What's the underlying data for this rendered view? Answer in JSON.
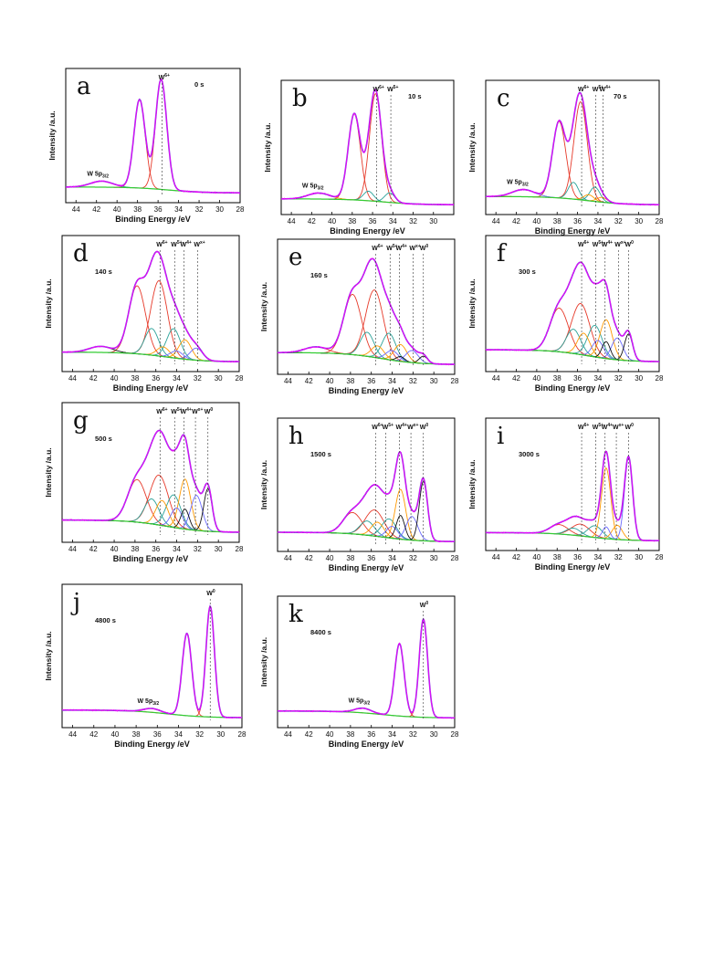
{
  "colors": {
    "envelope": "#8a2be2",
    "raw": "#ff00ff",
    "background": "#33cc33",
    "comp_w6": "#e63a2a",
    "comp_w5": "#2aa198",
    "comp_w4": "#ff9900",
    "comp_w0": "#111111",
    "comp_mid": "#6a6aff"
  },
  "chart_data": [
    {
      "id": "a",
      "type": "line",
      "panel_label": "a",
      "time_label": "0 s",
      "xlabel": "Binding  Energy /eV",
      "ylabel": "Intensity /a.u.",
      "xlim": [
        45,
        28
      ],
      "xticks": [
        44,
        42,
        40,
        38,
        36,
        34,
        32,
        30,
        28
      ],
      "annotations": [
        {
          "text": "W",
          "sup": "6+",
          "x": 35.6
        },
        {
          "text": "W 5p",
          "sub": "3/2",
          "x": 41.5
        }
      ],
      "components": [
        {
          "center": 37.8,
          "width": 0.55,
          "amp": 0.74
        },
        {
          "center": 35.7,
          "width": 0.55,
          "amp": 0.92
        },
        {
          "center": 41.5,
          "width": 1.1,
          "amp": 0.05
        }
      ],
      "bg": {
        "left": 0.05,
        "right": 0.0
      }
    },
    {
      "id": "b",
      "type": "line",
      "panel_label": "b",
      "time_label": "10 s",
      "xlabel": "Binding  Energy /eV",
      "ylabel": "Intensity /a.u.",
      "xlim": [
        45,
        28
      ],
      "xticks": [
        44,
        42,
        40,
        38,
        36,
        34,
        32,
        30
      ],
      "annotations": [
        {
          "text": "W",
          "sup": "6+",
          "x": 35.6
        },
        {
          "text": "W",
          "sup": "5+",
          "x": 34.2
        },
        {
          "text": "W 5p",
          "sub": "3/2",
          "x": 41.5
        }
      ],
      "components": [
        {
          "center": 37.8,
          "width": 0.6,
          "amp": 0.72
        },
        {
          "center": 35.7,
          "width": 0.6,
          "amp": 0.9
        },
        {
          "center": 36.4,
          "width": 0.5,
          "amp": 0.08
        },
        {
          "center": 34.3,
          "width": 0.5,
          "amp": 0.08
        },
        {
          "center": 41.3,
          "width": 1.1,
          "amp": 0.05
        }
      ],
      "bg": {
        "left": 0.05,
        "right": 0.0
      }
    },
    {
      "id": "c",
      "type": "line",
      "panel_label": "c",
      "time_label": "70 s",
      "xlabel": "Binding  Energy /eV",
      "ylabel": "Intensity /a.u.",
      "xlim": [
        45,
        28
      ],
      "xticks": [
        44,
        42,
        40,
        38,
        36,
        34,
        32,
        30,
        28
      ],
      "annotations": [
        {
          "text": "W",
          "sup": "6+",
          "x": 35.6
        },
        {
          "text": "W",
          "sup": "5+",
          "x": 34.2
        },
        {
          "text": "W",
          "sup": "4+",
          "x": 33.5
        },
        {
          "text": "W 5p",
          "sub": "3/2",
          "x": 41.5
        }
      ],
      "components": [
        {
          "center": 37.8,
          "width": 0.65,
          "amp": 0.64
        },
        {
          "center": 35.7,
          "width": 0.65,
          "amp": 0.82
        },
        {
          "center": 36.4,
          "width": 0.5,
          "amp": 0.14
        },
        {
          "center": 34.3,
          "width": 0.5,
          "amp": 0.12
        },
        {
          "center": 34.9,
          "width": 0.5,
          "amp": 0.05
        },
        {
          "center": 33.6,
          "width": 0.5,
          "amp": 0.04
        },
        {
          "center": 41.3,
          "width": 1.1,
          "amp": 0.06
        }
      ],
      "bg": {
        "left": 0.07,
        "right": 0.0
      }
    },
    {
      "id": "d",
      "type": "line",
      "panel_label": "d",
      "time_label": "140 s",
      "xlabel": "Binding  Energy /eV",
      "ylabel": "Intensity /a.u.",
      "xlim": [
        45,
        28
      ],
      "xticks": [
        44,
        42,
        40,
        38,
        36,
        34,
        32,
        30,
        28
      ],
      "annotations": [
        {
          "text": "W",
          "sup": "6+",
          "x": 35.6
        },
        {
          "text": "W",
          "sup": "5+",
          "x": 34.2
        },
        {
          "text": "W",
          "sup": "4+",
          "x": 33.3
        },
        {
          "text": "W",
          "sup": "x+",
          "x": 32.0
        }
      ],
      "components": [
        {
          "center": 37.8,
          "width": 0.8,
          "amp": 0.56
        },
        {
          "center": 35.7,
          "width": 0.8,
          "amp": 0.62
        },
        {
          "center": 36.4,
          "width": 0.65,
          "amp": 0.22
        },
        {
          "center": 34.3,
          "width": 0.65,
          "amp": 0.24
        },
        {
          "center": 35.3,
          "width": 0.6,
          "amp": 0.08
        },
        {
          "center": 33.2,
          "width": 0.6,
          "amp": 0.16
        },
        {
          "center": 34.0,
          "width": 0.6,
          "amp": 0.06
        },
        {
          "center": 32.1,
          "width": 0.6,
          "amp": 0.1
        },
        {
          "center": 41.3,
          "width": 1.1,
          "amp": 0.05
        }
      ],
      "bg": {
        "left": 0.08,
        "right": 0.0
      }
    },
    {
      "id": "e",
      "type": "line",
      "panel_label": "e",
      "time_label": "160 s",
      "xlabel": "Binding  Energy /eV",
      "ylabel": "Intensity /a.u.",
      "xlim": [
        45,
        28
      ],
      "xticks": [
        44,
        42,
        40,
        38,
        36,
        34,
        32,
        30,
        28
      ],
      "annotations": [
        {
          "text": "W",
          "sup": "6+",
          "x": 35.6
        },
        {
          "text": "W",
          "sup": "5+",
          "x": 34.2
        },
        {
          "text": "W",
          "sup": "4+",
          "x": 33.3
        },
        {
          "text": "W",
          "sup": "x+",
          "x": 32.0
        },
        {
          "text": "W",
          "sup": "0",
          "x": 31.0
        }
      ],
      "components": [
        {
          "center": 37.8,
          "width": 0.85,
          "amp": 0.5
        },
        {
          "center": 35.7,
          "width": 0.85,
          "amp": 0.56
        },
        {
          "center": 36.4,
          "width": 0.65,
          "amp": 0.2
        },
        {
          "center": 34.3,
          "width": 0.65,
          "amp": 0.22
        },
        {
          "center": 35.4,
          "width": 0.6,
          "amp": 0.1
        },
        {
          "center": 33.2,
          "width": 0.6,
          "amp": 0.14
        },
        {
          "center": 34.0,
          "width": 0.6,
          "amp": 0.08
        },
        {
          "center": 32.1,
          "width": 0.6,
          "amp": 0.1
        },
        {
          "center": 33.2,
          "width": 0.4,
          "amp": 0.04
        },
        {
          "center": 31.0,
          "width": 0.4,
          "amp": 0.06
        },
        {
          "center": 41.3,
          "width": 1.1,
          "amp": 0.05
        }
      ],
      "bg": {
        "left": 0.1,
        "right": 0.0
      }
    },
    {
      "id": "f",
      "type": "line",
      "panel_label": "f",
      "time_label": "300 s",
      "xlabel": "Binding  Energy /eV",
      "ylabel": "Intensity /a.u.",
      "xlim": [
        45,
        28
      ],
      "xticks": [
        44,
        42,
        40,
        38,
        36,
        34,
        32,
        30,
        28
      ],
      "annotations": [
        {
          "text": "W",
          "sup": "6+",
          "x": 35.6
        },
        {
          "text": "W",
          "sup": "5+",
          "x": 34.2
        },
        {
          "text": "W",
          "sup": "4+",
          "x": 33.3
        },
        {
          "text": "W",
          "sup": "x+",
          "x": 32.0
        },
        {
          "text": "W",
          "sup": "0",
          "x": 31.0
        }
      ],
      "components": [
        {
          "center": 37.8,
          "width": 0.9,
          "amp": 0.36
        },
        {
          "center": 35.7,
          "width": 0.9,
          "amp": 0.42
        },
        {
          "center": 36.4,
          "width": 0.7,
          "amp": 0.2
        },
        {
          "center": 34.3,
          "width": 0.7,
          "amp": 0.26
        },
        {
          "center": 35.4,
          "width": 0.6,
          "amp": 0.18
        },
        {
          "center": 33.2,
          "width": 0.6,
          "amp": 0.32
        },
        {
          "center": 34.0,
          "width": 0.55,
          "amp": 0.14
        },
        {
          "center": 32.1,
          "width": 0.55,
          "amp": 0.18
        },
        {
          "center": 33.2,
          "width": 0.4,
          "amp": 0.14
        },
        {
          "center": 31.0,
          "width": 0.4,
          "amp": 0.22
        }
      ],
      "bg": {
        "left": 0.1,
        "right": 0.0
      }
    },
    {
      "id": "g",
      "type": "line",
      "panel_label": "g",
      "time_label": "500 s",
      "xlabel": "Binding  Energy /eV",
      "ylabel": "Intensity /a.u.",
      "xlim": [
        45,
        28
      ],
      "xticks": [
        44,
        42,
        40,
        38,
        36,
        34,
        32,
        30,
        28
      ],
      "annotations": [
        {
          "text": "W",
          "sup": "6+",
          "x": 35.6
        },
        {
          "text": "W",
          "sup": "5+",
          "x": 34.2
        },
        {
          "text": "W",
          "sup": "4+",
          "x": 33.3
        },
        {
          "text": "W",
          "sup": "x+",
          "x": 32.2
        },
        {
          "text": "W",
          "sup": "0",
          "x": 31.0
        }
      ],
      "components": [
        {
          "center": 37.8,
          "width": 0.9,
          "amp": 0.34
        },
        {
          "center": 35.7,
          "width": 0.9,
          "amp": 0.4
        },
        {
          "center": 36.4,
          "width": 0.7,
          "amp": 0.2
        },
        {
          "center": 34.3,
          "width": 0.7,
          "amp": 0.26
        },
        {
          "center": 35.4,
          "width": 0.6,
          "amp": 0.2
        },
        {
          "center": 33.2,
          "width": 0.55,
          "amp": 0.4
        },
        {
          "center": 34.0,
          "width": 0.55,
          "amp": 0.16
        },
        {
          "center": 32.1,
          "width": 0.55,
          "amp": 0.28
        },
        {
          "center": 33.2,
          "width": 0.4,
          "amp": 0.16
        },
        {
          "center": 31.0,
          "width": 0.4,
          "amp": 0.34
        }
      ],
      "bg": {
        "left": 0.1,
        "right": 0.0
      }
    },
    {
      "id": "h",
      "type": "line",
      "panel_label": "h",
      "time_label": "1500 s",
      "xlabel": "Binding  Energy /eV",
      "ylabel": "Intensity /a.u.",
      "xlim": [
        45,
        28
      ],
      "xticks": [
        44,
        42,
        40,
        38,
        36,
        34,
        32,
        30,
        28
      ],
      "annotations": [
        {
          "text": "W",
          "sup": "6+",
          "x": 35.6
        },
        {
          "text": "W",
          "sup": "5+",
          "x": 34.6
        },
        {
          "text": "W",
          "sup": "4+",
          "x": 33.3
        },
        {
          "text": "W",
          "sup": "x+",
          "x": 32.2
        },
        {
          "text": "W",
          "sup": "0",
          "x": 31.0
        }
      ],
      "components": [
        {
          "center": 37.8,
          "width": 0.9,
          "amp": 0.18
        },
        {
          "center": 35.7,
          "width": 0.9,
          "amp": 0.22
        },
        {
          "center": 36.4,
          "width": 0.7,
          "amp": 0.12
        },
        {
          "center": 34.3,
          "width": 0.7,
          "amp": 0.16
        },
        {
          "center": 35.4,
          "width": 0.6,
          "amp": 0.12
        },
        {
          "center": 33.2,
          "width": 0.5,
          "amp": 0.42
        },
        {
          "center": 34.0,
          "width": 0.55,
          "amp": 0.1
        },
        {
          "center": 32.1,
          "width": 0.55,
          "amp": 0.2
        },
        {
          "center": 33.2,
          "width": 0.4,
          "amp": 0.2
        },
        {
          "center": 31.0,
          "width": 0.4,
          "amp": 0.5
        }
      ],
      "bg": {
        "left": 0.08,
        "right": 0.0
      }
    },
    {
      "id": "i",
      "type": "line",
      "panel_label": "i",
      "time_label": "3000 s",
      "xlabel": "Binding  Energy /eV",
      "ylabel": "Intensity /a.u.",
      "xlim": [
        45,
        28
      ],
      "xticks": [
        44,
        42,
        40,
        38,
        36,
        34,
        32,
        30,
        28
      ],
      "annotations": [
        {
          "text": "W",
          "sup": "6+",
          "x": 35.6
        },
        {
          "text": "W",
          "sup": "5+",
          "x": 34.2
        },
        {
          "text": "W",
          "sup": "4+",
          "x": 33.3
        },
        {
          "text": "W",
          "sup": "x+",
          "x": 32.2
        },
        {
          "text": "W",
          "sup": "0",
          "x": 31.0
        }
      ],
      "components": [
        {
          "center": 37.8,
          "width": 0.9,
          "amp": 0.08
        },
        {
          "center": 35.7,
          "width": 0.9,
          "amp": 0.1
        },
        {
          "center": 36.4,
          "width": 0.7,
          "amp": 0.06
        },
        {
          "center": 34.3,
          "width": 0.7,
          "amp": 0.1
        },
        {
          "center": 33.2,
          "width": 0.45,
          "amp": 0.6
        },
        {
          "center": 32.1,
          "width": 0.5,
          "amp": 0.12
        },
        {
          "center": 33.2,
          "width": 0.35,
          "amp": 0.1
        },
        {
          "center": 31.0,
          "width": 0.4,
          "amp": 0.7
        }
      ],
      "bg": {
        "left": 0.07,
        "right": 0.0
      }
    },
    {
      "id": "j",
      "type": "line",
      "panel_label": "j",
      "time_label": "4800 s",
      "xlabel": "Binding  Energy /eV",
      "ylabel": "Intensity /a.u.",
      "xlim": [
        45,
        28
      ],
      "xticks": [
        44,
        42,
        40,
        38,
        36,
        34,
        32,
        30,
        28
      ],
      "annotations": [
        {
          "text": "W",
          "sup": "0",
          "x": 31.0
        },
        {
          "text": "W 5p",
          "sub": "3/2",
          "x": 36.5
        }
      ],
      "components": [
        {
          "center": 33.2,
          "width": 0.45,
          "amp": 0.64
        },
        {
          "center": 31.0,
          "width": 0.4,
          "amp": 0.86
        },
        {
          "center": 36.5,
          "width": 0.8,
          "amp": 0.03
        }
      ],
      "bg": {
        "left": 0.06,
        "right": 0.0
      }
    },
    {
      "id": "k",
      "type": "line",
      "panel_label": "k",
      "time_label": "8400 s",
      "xlabel": "Binding  Energy /eV",
      "ylabel": "Intensity /a.u.",
      "xlim": [
        45,
        28
      ],
      "xticks": [
        44,
        42,
        40,
        38,
        36,
        34,
        32,
        30,
        28
      ],
      "annotations": [
        {
          "text": "W",
          "sup": "0",
          "x": 31.0
        },
        {
          "text": "W 5p",
          "sub": "3/2",
          "x": 36.8
        }
      ],
      "components": [
        {
          "center": 33.3,
          "width": 0.45,
          "amp": 0.62
        },
        {
          "center": 31.0,
          "width": 0.4,
          "amp": 0.84
        },
        {
          "center": 36.8,
          "width": 0.8,
          "amp": 0.04
        }
      ],
      "bg": {
        "left": 0.06,
        "right": 0.0
      }
    }
  ]
}
